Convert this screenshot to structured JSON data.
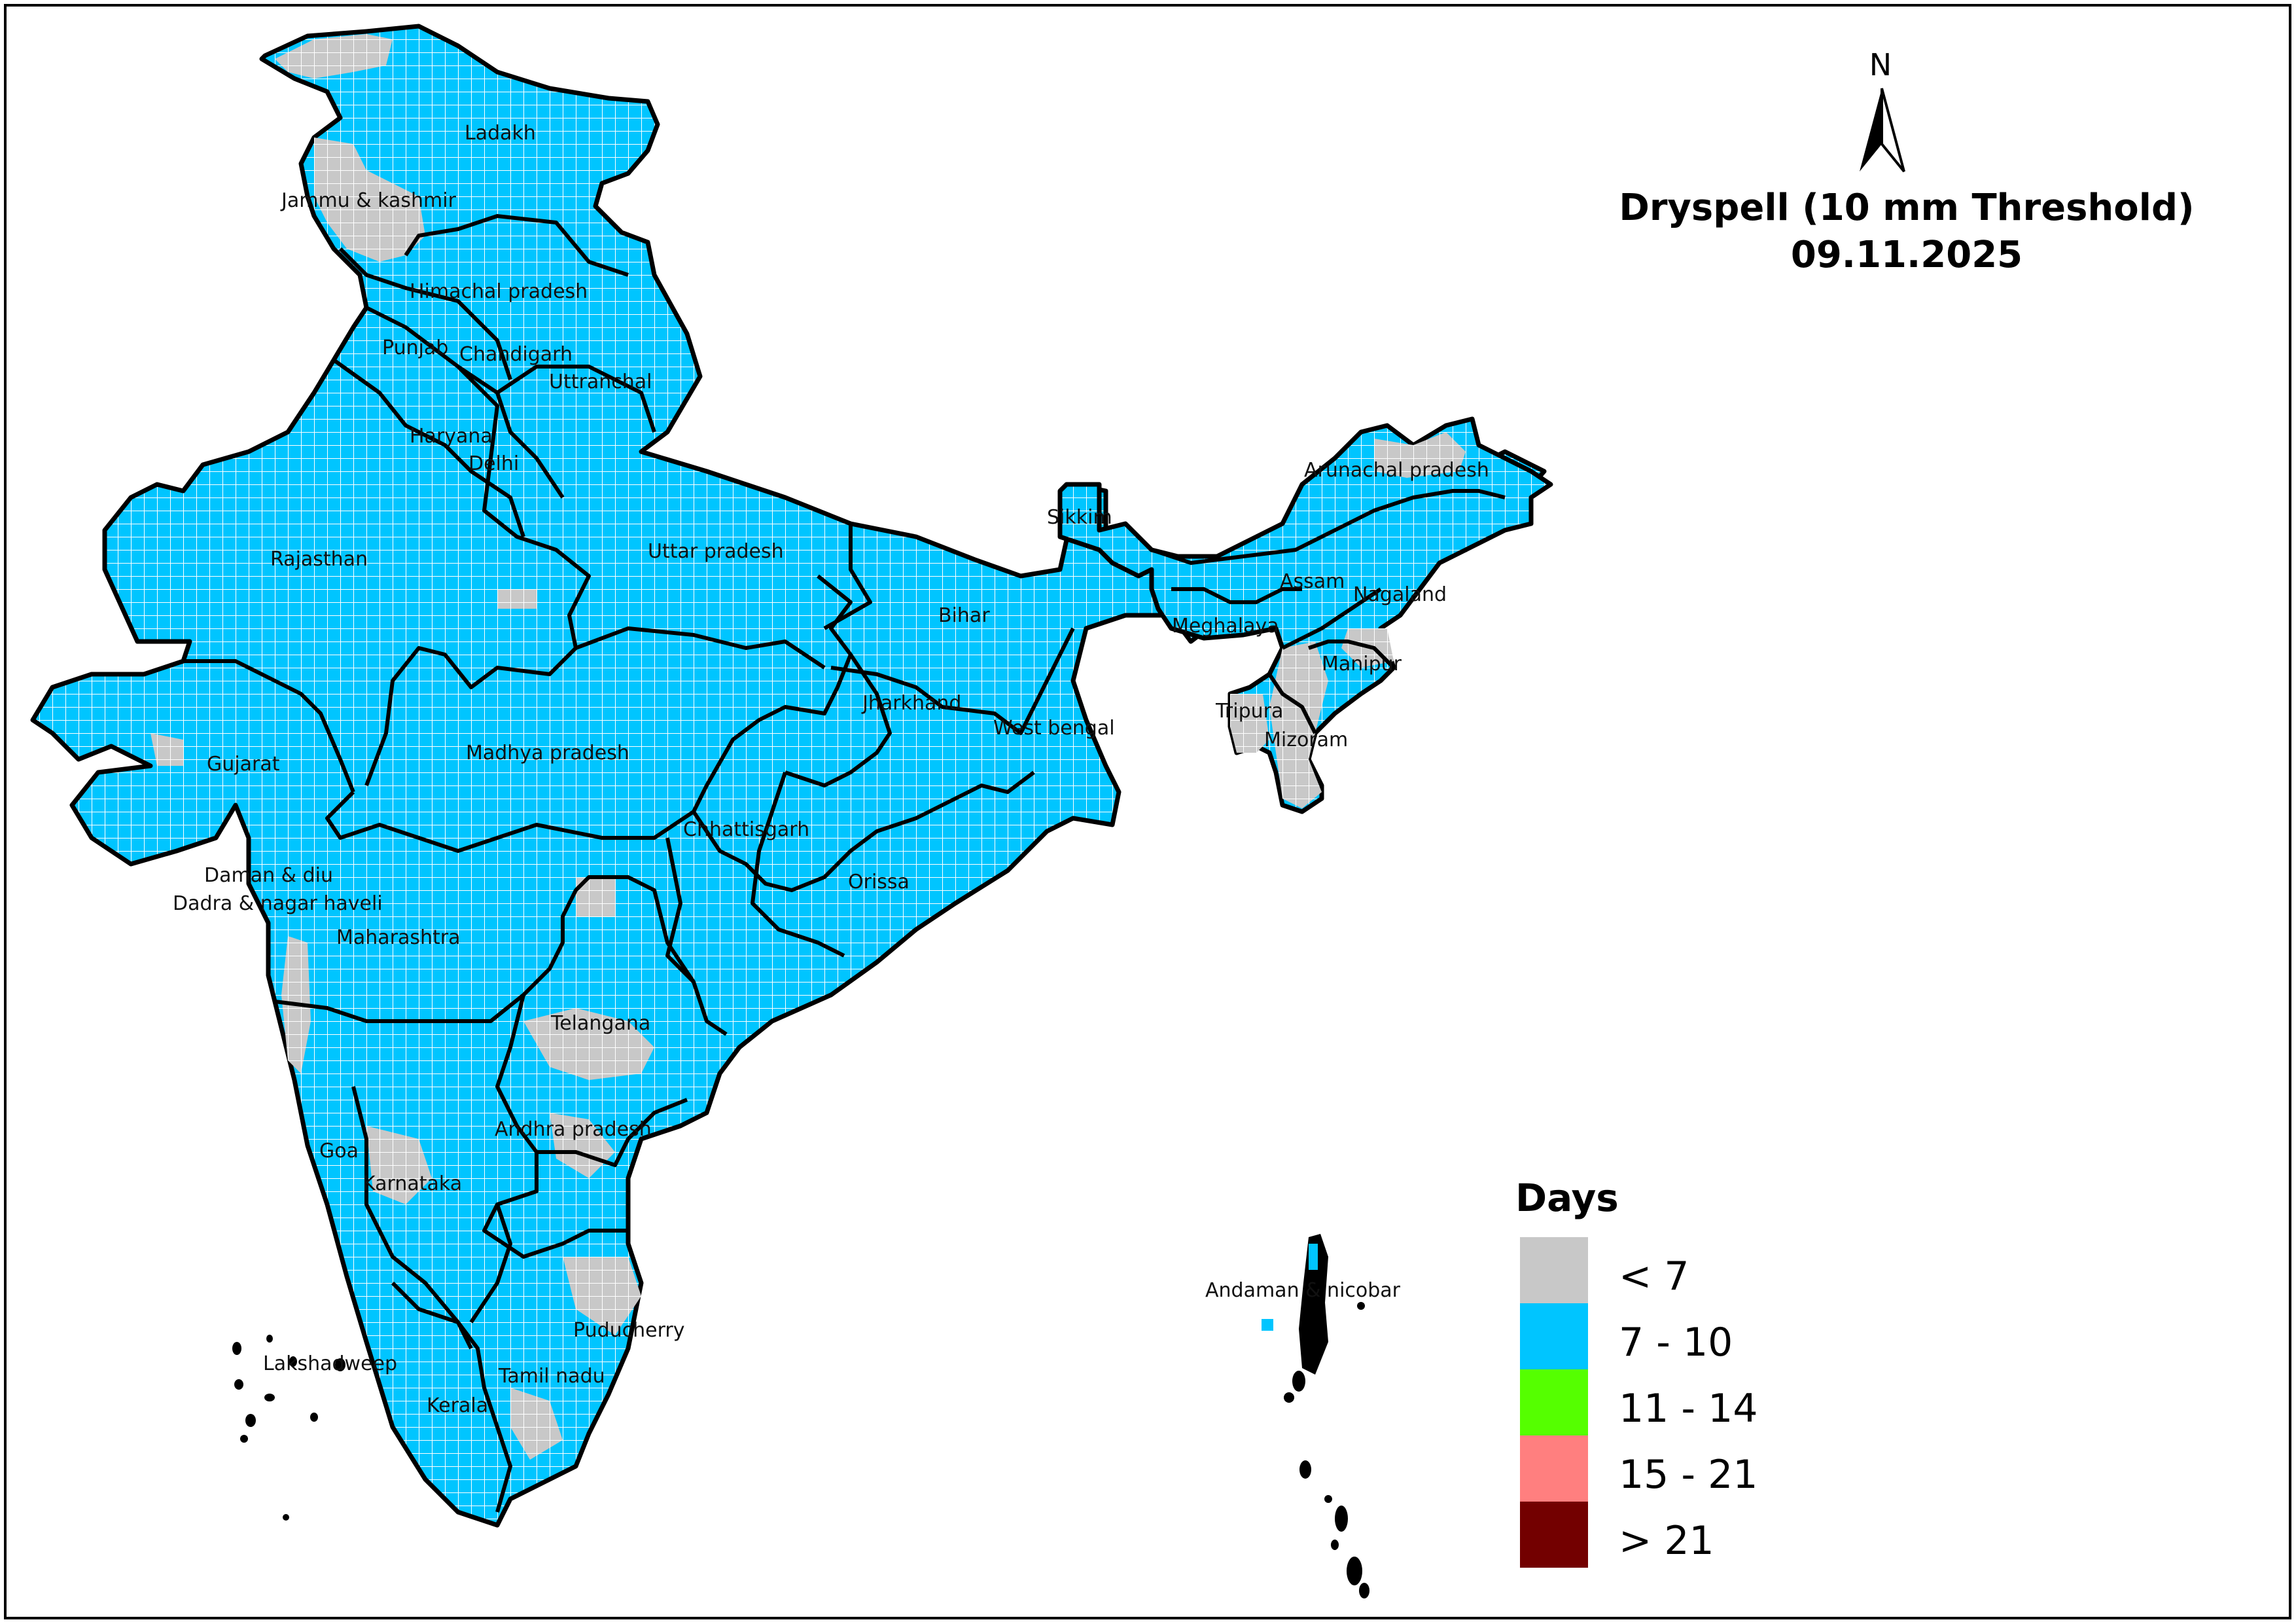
{
  "title": {
    "line1": "Dryspell (10 mm Threshold)",
    "line2": "09.11.2025"
  },
  "north_arrow": {
    "label": "N"
  },
  "legend": {
    "title": "Days",
    "items": [
      {
        "label": "< 7",
        "color": "#c8c8c8"
      },
      {
        "label": "7 - 10",
        "color": "#00c5ff"
      },
      {
        "label": "11 - 14",
        "color": "#55ff00"
      },
      {
        "label": "15 - 21",
        "color": "#ff7f7f"
      },
      {
        "label": "> 21",
        "color": "#730000"
      }
    ]
  },
  "colors": {
    "grid_line": "#ffffff",
    "boundary": "#000000",
    "dominant_class": "#00c5ff",
    "secondary_class": "#c8c8c8"
  },
  "states": [
    "Ladakh",
    "Jammu & kashmir",
    "Himachal pradesh",
    "Punjab",
    "Chandigarh",
    "Uttranchal",
    "Haryana",
    "Delhi",
    "Rajasthan",
    "Uttar pradesh",
    "Sikkim",
    "Arunachal pradesh",
    "Assam",
    "Nagaland",
    "Meghalaya",
    "Bihar",
    "Manipur",
    "Tripura",
    "Mizoram",
    "Jharkhand",
    "West bengal",
    "Gujarat",
    "Madhya pradesh",
    "Chhattisgarh",
    "Orissa",
    "Daman & diu",
    "Dadra & nagar haveli",
    "Maharashtra",
    "Telangana",
    "Andhra pradesh",
    "Goa",
    "Karnataka",
    "Puducherry",
    "Lakshadweep",
    "Tamil nadu",
    "Kerala",
    "Andaman & nicobar"
  ]
}
